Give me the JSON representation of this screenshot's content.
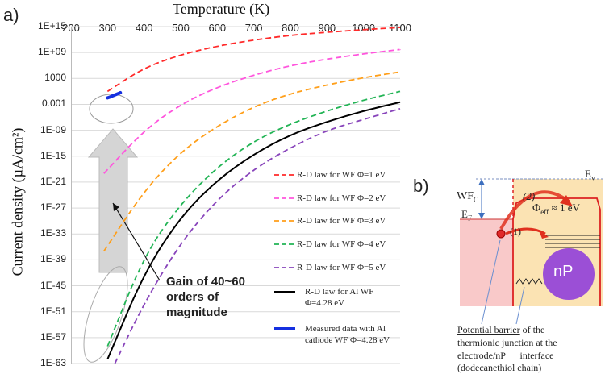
{
  "panel_a": {
    "label": "a)"
  },
  "panel_b": {
    "label": "b)"
  },
  "chart_data": {
    "type": "line",
    "title": "Temperature (K)",
    "xlabel": "Temperature (K)",
    "ylabel": "Current density (µA/cm²)",
    "xlim": [
      200,
      1100
    ],
    "ylim_log10": [
      -63,
      15
    ],
    "x_ticks": [
      "200",
      "300",
      "400",
      "500",
      "600",
      "700",
      "800",
      "900",
      "1000",
      "1100"
    ],
    "x_tick_values": [
      200,
      300,
      400,
      500,
      600,
      700,
      800,
      900,
      1000,
      1100
    ],
    "y_ticks": [
      "1E+15",
      "1E+09",
      "1000",
      "0.001",
      "1E-09",
      "1E-15",
      "1E-21",
      "1E-27",
      "1E-33",
      "1E-39",
      "1E-45",
      "1E-51",
      "1E-57",
      "1E-63"
    ],
    "y_tick_log10": [
      15,
      9,
      3,
      -3,
      -9,
      -15,
      -21,
      -27,
      -33,
      -39,
      -45,
      -51,
      -57,
      -63
    ],
    "grid": "horizontal",
    "legend_position": "right",
    "series": [
      {
        "name": "R-D law for WF Φ=1 eV",
        "color": "#ff2a2a",
        "style": "dashed",
        "x": [
          300,
          400,
          500,
          600,
          700,
          800,
          900,
          1000,
          1100
        ],
        "log10_values": [
          0,
          5.5,
          8.5,
          10.5,
          11.9,
          13.0,
          13.7,
          14.3,
          14.8
        ]
      },
      {
        "name": "R-D law for WF Φ=2 eV",
        "color": "#ff55dd",
        "style": "dashed",
        "x": [
          290,
          400,
          500,
          600,
          700,
          800,
          900,
          1000,
          1100
        ],
        "log10_values": [
          -19,
          -9,
          -3,
          1,
          3.8,
          6,
          7.5,
          8.7,
          9.7
        ]
      },
      {
        "name": "R-D law for WF Φ=3 eV",
        "color": "#ff9f1a",
        "style": "dashed",
        "x": [
          290,
          400,
          500,
          600,
          700,
          800,
          900,
          1000,
          1100
        ],
        "log10_values": [
          -37,
          -23,
          -14,
          -8,
          -3.5,
          -0.5,
          1.5,
          3.2,
          4.5
        ]
      },
      {
        "name": "R-D law for WF Φ=4 eV",
        "color": "#22b455",
        "style": "dashed",
        "x": [
          300,
          400,
          500,
          600,
          700,
          800,
          900,
          1000,
          1100
        ],
        "log10_values": [
          -59,
          -38,
          -26,
          -17.5,
          -11.5,
          -7.5,
          -4.5,
          -2,
          0
        ]
      },
      {
        "name": "R-D law for WF Φ=5 eV",
        "color": "#8844bb",
        "style": "dashed",
        "x": [
          320,
          400,
          500,
          600,
          700,
          800,
          900,
          1000,
          1100
        ],
        "log10_values": [
          -63,
          -49,
          -35,
          -25,
          -18,
          -13,
          -9,
          -6.5,
          -4
        ]
      },
      {
        "name": "R-D law for Al WF Φ=4.28 eV",
        "color": "#000000",
        "style": "solid",
        "x": [
          300,
          400,
          500,
          600,
          700,
          800,
          900,
          1000,
          1100
        ],
        "log10_values": [
          -62,
          -42,
          -29,
          -20.5,
          -14.5,
          -10,
          -7,
          -4.5,
          -2.5
        ]
      },
      {
        "name": "Measured data with Al cathode WF Φ=4.28 eV",
        "color": "#1530e0",
        "style": "solid-thick",
        "x": [
          300,
          310,
          320,
          330,
          335
        ],
        "log10_values": [
          -1.5,
          -1.2,
          -0.8,
          -0.5,
          -0.3
        ]
      }
    ],
    "legend": [
      {
        "label": "R-D law for WF Φ=1 eV"
      },
      {
        "label": "R-D law for WF Φ=2 eV"
      },
      {
        "label": "R-D law for WF Φ=3 eV"
      },
      {
        "label": "R-D law for WF Φ=4 eV"
      },
      {
        "label": "R-D law for WF Φ=5 eV"
      },
      {
        "label_1": "R-D law for Al WF",
        "label_2": "Φ=4.28 eV"
      },
      {
        "label_1": "Measured data with Al",
        "label_2": "cathode WF Φ=4.28 eV"
      }
    ],
    "annotation": {
      "line1": "Gain of 40~60",
      "line2": "orders of",
      "line3": "magnitude"
    }
  },
  "diagram": {
    "ev_label": "E",
    "ev_sub": "v",
    "wfc_label": "WF",
    "wfc_sub": "C",
    "ef_label": "E",
    "ef_sub": "F",
    "step2_label": "(2)",
    "step1_label": "(1)",
    "phi_label": "Φ",
    "phi_sub": "eff",
    "phi_value": "≈ 1 eV",
    "np_label": "nP",
    "caption_line1_underlined": "Potential barrier",
    "caption_line1_rest": " of the",
    "caption_line2": "thermionic junction at the",
    "caption_line3": "electrode/nP      interface",
    "caption_line4_underlined": "(dodecanethiol chain)"
  },
  "colors": {
    "electrode": "#f9c9c9",
    "junction": "#fbe3b3",
    "arrow": "#e0301e",
    "np_ball": "#9b4fd6",
    "gain_arrow": "#d5d5d5"
  }
}
